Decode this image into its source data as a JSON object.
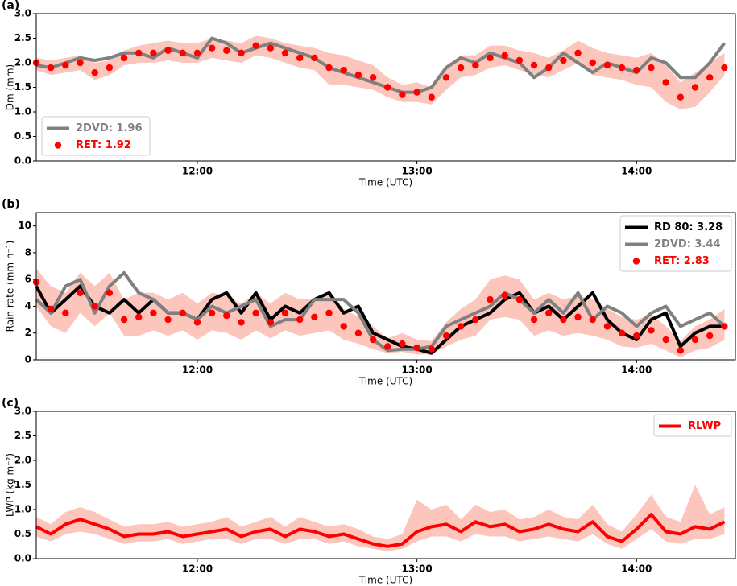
{
  "chart_data": [
    {
      "type": "line",
      "label": "(a)",
      "ylabel": "Dm (mm)",
      "xlabel": "Time (UTC)",
      "xlim": [
        676,
        867
      ],
      "xticks": [
        {
          "value": 720,
          "label": "12:00"
        },
        {
          "value": 780,
          "label": "13:00"
        },
        {
          "value": 840,
          "label": "14:00"
        }
      ],
      "ylim": [
        0,
        3
      ],
      "yticks": [
        {
          "value": 0,
          "label": "0.0"
        },
        {
          "value": 0.5,
          "label": "0.5"
        },
        {
          "value": 1,
          "label": "1.0"
        },
        {
          "value": 1.5,
          "label": "1.5"
        },
        {
          "value": 2,
          "label": "2.0"
        },
        {
          "value": 2.5,
          "label": "2.5"
        },
        {
          "value": 3,
          "label": "3.0"
        }
      ],
      "legend": "lower left",
      "x": [
        676,
        680,
        684,
        688,
        692,
        696,
        700,
        704,
        708,
        712,
        716,
        720,
        724,
        728,
        732,
        736,
        740,
        744,
        748,
        752,
        756,
        760,
        764,
        768,
        772,
        776,
        780,
        784,
        788,
        792,
        796,
        800,
        804,
        808,
        812,
        816,
        820,
        824,
        828,
        832,
        836,
        840,
        844,
        848,
        852,
        856,
        860,
        864
      ],
      "band": {
        "color": "#fbb3a6",
        "lower": [
          1.85,
          1.75,
          1.8,
          1.85,
          1.65,
          1.75,
          1.95,
          2.0,
          2.0,
          2.05,
          2.0,
          2.0,
          2.1,
          2.05,
          2.0,
          2.15,
          2.1,
          2.0,
          1.9,
          1.85,
          1.55,
          1.55,
          1.5,
          1.45,
          1.3,
          1.2,
          1.2,
          1.15,
          1.45,
          1.7,
          1.75,
          1.9,
          1.95,
          1.85,
          1.75,
          1.7,
          1.85,
          2.0,
          1.75,
          1.7,
          1.65,
          1.55,
          1.5,
          1.2,
          1.05,
          1.1,
          1.4,
          1.75
        ],
        "upper": [
          2.1,
          2.05,
          2.1,
          2.15,
          2.0,
          2.05,
          2.25,
          2.35,
          2.4,
          2.45,
          2.4,
          2.4,
          2.5,
          2.45,
          2.4,
          2.55,
          2.5,
          2.4,
          2.35,
          2.3,
          2.2,
          2.15,
          2.05,
          1.95,
          1.7,
          1.55,
          1.6,
          1.5,
          1.95,
          2.15,
          2.15,
          2.35,
          2.35,
          2.25,
          2.2,
          2.1,
          2.25,
          2.45,
          2.3,
          2.2,
          2.15,
          2.1,
          2.2,
          1.95,
          1.6,
          1.8,
          2.0,
          2.2
        ]
      },
      "series": [
        {
          "name": "2DVD: 1.96",
          "color": "#808080",
          "style": "line",
          "values": [
            1.95,
            1.9,
            2.0,
            2.1,
            2.05,
            2.1,
            2.2,
            2.2,
            2.1,
            2.3,
            2.2,
            2.1,
            2.5,
            2.4,
            2.2,
            2.3,
            2.4,
            2.3,
            2.2,
            2.1,
            1.9,
            1.8,
            1.7,
            1.6,
            1.5,
            1.4,
            1.4,
            1.5,
            1.9,
            2.1,
            2.0,
            2.2,
            2.1,
            2.0,
            1.7,
            1.9,
            2.2,
            2.0,
            1.8,
            2.0,
            1.9,
            1.8,
            2.1,
            2.0,
            1.7,
            1.7,
            2.0,
            2.4
          ]
        },
        {
          "name": "RET: 1.92",
          "color": "#ff0000",
          "style": "points",
          "values": [
            2.0,
            1.9,
            1.95,
            2.0,
            1.8,
            1.9,
            2.1,
            2.2,
            2.2,
            2.25,
            2.2,
            2.2,
            2.3,
            2.25,
            2.2,
            2.35,
            2.3,
            2.2,
            2.1,
            2.1,
            1.9,
            1.85,
            1.75,
            1.7,
            1.5,
            1.35,
            1.4,
            1.3,
            1.7,
            1.9,
            1.95,
            2.1,
            2.15,
            2.05,
            1.95,
            1.9,
            2.05,
            2.2,
            2.0,
            1.95,
            1.9,
            1.85,
            1.9,
            1.6,
            1.3,
            1.5,
            1.7,
            1.9
          ]
        }
      ]
    },
    {
      "type": "line",
      "label": "(b)",
      "ylabel": "Rain rate (mm h⁻¹)",
      "xlabel": "Time (UTC)",
      "xlim": [
        676,
        867
      ],
      "xticks": [
        {
          "value": 720,
          "label": "12:00"
        },
        {
          "value": 780,
          "label": "13:00"
        },
        {
          "value": 840,
          "label": "14:00"
        }
      ],
      "ylim": [
        0,
        11
      ],
      "yticks": [
        0,
        2,
        4,
        6,
        8,
        10
      ],
      "legend": "upper right",
      "x": [
        676,
        680,
        684,
        688,
        692,
        696,
        700,
        704,
        708,
        712,
        716,
        720,
        724,
        728,
        732,
        736,
        740,
        744,
        748,
        752,
        756,
        760,
        764,
        768,
        772,
        776,
        780,
        784,
        788,
        792,
        796,
        800,
        804,
        808,
        812,
        816,
        820,
        824,
        828,
        832,
        836,
        840,
        844,
        848,
        852,
        856,
        860,
        864
      ],
      "band": {
        "color": "#fbb3a6",
        "lower": [
          4.0,
          2.5,
          2.0,
          3.5,
          2.5,
          3.5,
          1.8,
          1.8,
          2.2,
          1.8,
          2.2,
          1.5,
          2.2,
          2.0,
          1.5,
          2.2,
          1.6,
          2.2,
          1.8,
          2.0,
          2.2,
          1.5,
          1.2,
          0.8,
          0.5,
          0.6,
          0.4,
          0.4,
          1.0,
          1.5,
          1.8,
          3.0,
          3.2,
          3.0,
          1.8,
          2.2,
          1.8,
          2.0,
          1.8,
          1.5,
          1.0,
          0.9,
          1.2,
          0.7,
          0.2,
          0.7,
          0.9,
          1.5
        ],
        "upper": [
          6.8,
          5.5,
          5.0,
          6.5,
          5.5,
          6.5,
          4.5,
          5.0,
          5.0,
          4.5,
          5.0,
          4.2,
          5.0,
          4.8,
          4.2,
          5.0,
          4.2,
          5.0,
          4.5,
          4.6,
          5.0,
          3.8,
          3.2,
          2.5,
          1.6,
          2.0,
          1.5,
          1.4,
          2.8,
          3.8,
          4.5,
          6.0,
          6.3,
          6.0,
          4.5,
          5.0,
          4.5,
          4.8,
          4.5,
          3.8,
          3.2,
          3.0,
          3.4,
          2.5,
          1.4,
          2.5,
          3.0,
          3.8
        ]
      },
      "series": [
        {
          "name": "RD 80: 3.28",
          "color": "#000000",
          "style": "line",
          "values": [
            5.5,
            3.5,
            4.5,
            5.5,
            4.0,
            3.5,
            4.5,
            3.5,
            4.5,
            3.5,
            3.5,
            3.0,
            4.5,
            5.0,
            3.5,
            5.0,
            3.0,
            4.0,
            3.5,
            4.5,
            5.0,
            3.5,
            4.0,
            2.0,
            1.5,
            1.0,
            0.8,
            0.5,
            1.5,
            2.5,
            3.0,
            3.5,
            4.5,
            5.0,
            3.5,
            4.0,
            3.0,
            4.0,
            5.0,
            3.0,
            2.0,
            1.5,
            3.0,
            3.5,
            1.0,
            2.0,
            2.5,
            2.5
          ]
        },
        {
          "name": "2DVD: 3.44",
          "color": "#808080",
          "style": "line",
          "values": [
            4.5,
            3.5,
            5.5,
            6.0,
            3.5,
            5.5,
            6.5,
            5.0,
            4.5,
            3.5,
            3.5,
            3.0,
            4.0,
            3.5,
            4.0,
            4.5,
            2.5,
            3.0,
            3.0,
            4.5,
            4.5,
            4.5,
            3.5,
            1.5,
            0.7,
            0.8,
            0.8,
            1.0,
            2.5,
            3.0,
            3.5,
            4.0,
            5.0,
            4.5,
            3.5,
            4.5,
            3.5,
            5.0,
            3.0,
            4.0,
            3.5,
            2.5,
            3.5,
            4.0,
            2.5,
            3.0,
            3.5,
            2.5
          ]
        },
        {
          "name": "RET: 2.83",
          "color": "#ff0000",
          "style": "points",
          "values": [
            5.8,
            3.8,
            3.5,
            5.0,
            4.0,
            5.0,
            3.0,
            3.2,
            3.5,
            3.0,
            3.5,
            2.8,
            3.5,
            3.3,
            2.8,
            3.5,
            2.8,
            3.5,
            3.0,
            3.2,
            3.5,
            2.5,
            2.0,
            1.5,
            1.0,
            1.2,
            0.9,
            0.8,
            1.8,
            2.5,
            3.0,
            4.5,
            4.8,
            4.5,
            3.0,
            3.5,
            3.0,
            3.2,
            3.0,
            2.5,
            2.0,
            1.8,
            2.2,
            1.5,
            0.7,
            1.5,
            1.8,
            2.5
          ]
        }
      ]
    },
    {
      "type": "line",
      "label": "(c)",
      "ylabel": "LWP (kg m⁻²)",
      "xlabel": "Time (UTC)",
      "xlim": [
        676,
        867
      ],
      "xticks": [
        {
          "value": 720,
          "label": "12:00"
        },
        {
          "value": 780,
          "label": "13:00"
        },
        {
          "value": 840,
          "label": "14:00"
        }
      ],
      "ylim": [
        0,
        3
      ],
      "yticks": [
        {
          "value": 0,
          "label": "0.0"
        },
        {
          "value": 0.5,
          "label": "0.5"
        },
        {
          "value": 1,
          "label": "1.0"
        },
        {
          "value": 1.5,
          "label": "1.5"
        },
        {
          "value": 2,
          "label": "2.0"
        },
        {
          "value": 2.5,
          "label": "2.5"
        },
        {
          "value": 3,
          "label": "3.0"
        }
      ],
      "legend": "upper right",
      "x": [
        676,
        680,
        684,
        688,
        692,
        696,
        700,
        704,
        708,
        712,
        716,
        720,
        724,
        728,
        732,
        736,
        740,
        744,
        748,
        752,
        756,
        760,
        764,
        768,
        772,
        776,
        780,
        784,
        788,
        792,
        796,
        800,
        804,
        808,
        812,
        816,
        820,
        824,
        828,
        832,
        836,
        840,
        844,
        848,
        852,
        856,
        860,
        864
      ],
      "band": {
        "color": "#fbb3a6",
        "lower": [
          0.45,
          0.35,
          0.5,
          0.55,
          0.5,
          0.4,
          0.3,
          0.35,
          0.35,
          0.4,
          0.3,
          0.35,
          0.4,
          0.4,
          0.3,
          0.4,
          0.4,
          0.3,
          0.4,
          0.4,
          0.3,
          0.35,
          0.25,
          0.2,
          0.15,
          0.2,
          0.35,
          0.45,
          0.45,
          0.35,
          0.5,
          0.45,
          0.45,
          0.35,
          0.4,
          0.45,
          0.4,
          0.35,
          0.5,
          0.3,
          0.2,
          0.4,
          0.6,
          0.35,
          0.3,
          0.4,
          0.4,
          0.5
        ],
        "upper": [
          0.85,
          0.7,
          0.95,
          1.05,
          0.95,
          0.8,
          0.65,
          0.7,
          0.7,
          0.75,
          0.65,
          0.7,
          0.75,
          0.85,
          0.65,
          0.75,
          0.85,
          0.65,
          0.85,
          0.75,
          0.65,
          0.7,
          0.6,
          0.45,
          0.4,
          0.5,
          1.2,
          1.0,
          1.1,
          0.8,
          1.1,
          0.95,
          1.0,
          0.8,
          0.85,
          1.0,
          0.85,
          0.8,
          1.1,
          0.7,
          0.55,
          0.9,
          1.3,
          0.85,
          0.75,
          1.5,
          0.9,
          1.05
        ]
      },
      "series": [
        {
          "name": "RLWP",
          "color": "#ff0000",
          "style": "line",
          "values": [
            0.65,
            0.5,
            0.7,
            0.8,
            0.7,
            0.6,
            0.45,
            0.5,
            0.5,
            0.55,
            0.45,
            0.5,
            0.55,
            0.6,
            0.45,
            0.55,
            0.6,
            0.45,
            0.6,
            0.55,
            0.45,
            0.5,
            0.4,
            0.3,
            0.25,
            0.3,
            0.55,
            0.65,
            0.7,
            0.55,
            0.75,
            0.65,
            0.7,
            0.55,
            0.6,
            0.7,
            0.6,
            0.55,
            0.75,
            0.45,
            0.35,
            0.6,
            0.9,
            0.55,
            0.5,
            0.65,
            0.6,
            0.75
          ]
        }
      ]
    }
  ]
}
